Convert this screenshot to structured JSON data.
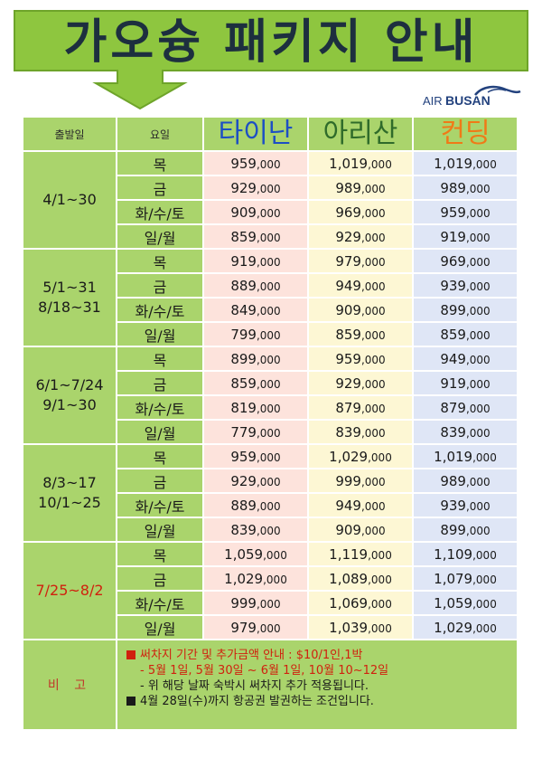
{
  "title": "가오슝 패키지 안내",
  "logo": {
    "air": "AIR",
    "busan": "BUSAN"
  },
  "colors": {
    "banner_green": "#8ec63f",
    "header_green": "#aad46c",
    "tainan": "#1d4fc4",
    "alishan": "#2f6b2a",
    "kending": "#f07a17",
    "red_note": "#d0210e"
  },
  "header": {
    "departure": "출발일",
    "weekday": "요일",
    "tainan": "타이난",
    "alishan": "아리산",
    "kending": "컨딩"
  },
  "periods": [
    {
      "lines": [
        "4/1~30"
      ],
      "red": false,
      "rows": [
        {
          "day": "목",
          "tainan": [
            "959",
            ",000"
          ],
          "alishan": [
            "1,019",
            ",000"
          ],
          "kending": [
            "1,019",
            ",000"
          ]
        },
        {
          "day": "금",
          "tainan": [
            "929",
            ",000"
          ],
          "alishan": [
            "989",
            ",000"
          ],
          "kending": [
            "989",
            ",000"
          ]
        },
        {
          "day": "화/수/토",
          "tainan": [
            "909",
            ",000"
          ],
          "alishan": [
            "969",
            ",000"
          ],
          "kending": [
            "959",
            ",000"
          ]
        },
        {
          "day": "일/월",
          "tainan": [
            "859",
            ",000"
          ],
          "alishan": [
            "929",
            ",000"
          ],
          "kending": [
            "919",
            ",000"
          ]
        }
      ]
    },
    {
      "lines": [
        "5/1~31",
        "8/18~31"
      ],
      "red": false,
      "rows": [
        {
          "day": "목",
          "tainan": [
            "919",
            ",000"
          ],
          "alishan": [
            "979",
            ",000"
          ],
          "kending": [
            "969",
            ",000"
          ]
        },
        {
          "day": "금",
          "tainan": [
            "889",
            ",000"
          ],
          "alishan": [
            "949",
            ",000"
          ],
          "kending": [
            "939",
            ",000"
          ]
        },
        {
          "day": "화/수/토",
          "tainan": [
            "849",
            ",000"
          ],
          "alishan": [
            "909",
            ",000"
          ],
          "kending": [
            "899",
            ",000"
          ]
        },
        {
          "day": "일/월",
          "tainan": [
            "799",
            ",000"
          ],
          "alishan": [
            "859",
            ",000"
          ],
          "kending": [
            "859",
            ",000"
          ]
        }
      ]
    },
    {
      "lines": [
        "6/1~7/24",
        "9/1~30"
      ],
      "red": false,
      "rows": [
        {
          "day": "목",
          "tainan": [
            "899",
            ",000"
          ],
          "alishan": [
            "959",
            ",000"
          ],
          "kending": [
            "949",
            ",000"
          ]
        },
        {
          "day": "금",
          "tainan": [
            "859",
            ",000"
          ],
          "alishan": [
            "929",
            ",000"
          ],
          "kending": [
            "919",
            ",000"
          ]
        },
        {
          "day": "화/수/토",
          "tainan": [
            "819",
            ",000"
          ],
          "alishan": [
            "879",
            ",000"
          ],
          "kending": [
            "879",
            ",000"
          ]
        },
        {
          "day": "일/월",
          "tainan": [
            "779",
            ",000"
          ],
          "alishan": [
            "839",
            ",000"
          ],
          "kending": [
            "839",
            ",000"
          ]
        }
      ]
    },
    {
      "lines": [
        "8/3~17",
        "10/1~25"
      ],
      "red": false,
      "rows": [
        {
          "day": "목",
          "tainan": [
            "959",
            ",000"
          ],
          "alishan": [
            "1,029",
            ",000"
          ],
          "kending": [
            "1,019",
            ",000"
          ]
        },
        {
          "day": "금",
          "tainan": [
            "929",
            ",000"
          ],
          "alishan": [
            "999",
            ",000"
          ],
          "kending": [
            "989",
            ",000"
          ]
        },
        {
          "day": "화/수/토",
          "tainan": [
            "889",
            ",000"
          ],
          "alishan": [
            "949",
            ",000"
          ],
          "kending": [
            "939",
            ",000"
          ]
        },
        {
          "day": "일/월",
          "tainan": [
            "839",
            ",000"
          ],
          "alishan": [
            "909",
            ",000"
          ],
          "kending": [
            "899",
            ",000"
          ]
        }
      ]
    },
    {
      "lines": [
        "7/25~8/2"
      ],
      "red": true,
      "rows": [
        {
          "day": "목",
          "tainan": [
            "1,059",
            ",000"
          ],
          "alishan": [
            "1,119",
            ",000"
          ],
          "kending": [
            "1,109",
            ",000"
          ]
        },
        {
          "day": "금",
          "tainan": [
            "1,029",
            ",000"
          ],
          "alishan": [
            "1,089",
            ",000"
          ],
          "kending": [
            "1,079",
            ",000"
          ]
        },
        {
          "day": "화/수/토",
          "tainan": [
            "999",
            ",000"
          ],
          "alishan": [
            "1,069",
            ",000"
          ],
          "kending": [
            "1,059",
            ",000"
          ]
        },
        {
          "day": "일/월",
          "tainan": [
            "979",
            ",000"
          ],
          "alishan": [
            "1,039",
            ",000"
          ],
          "kending": [
            "1,029",
            ",000"
          ]
        }
      ]
    }
  ],
  "notes": {
    "label": "비 고",
    "surcharge_title": "써차지 기간 및 추가금액 안내 : $10/1인,1박",
    "surcharge_dates": "- 5월 1일, 5월 30일 ~ 6월 1일, 10월 10~12일",
    "surcharge_apply": "- 위 해당 날짜 숙박시 써차지 추가 적용됩니다.",
    "ticketing": "4월 28일(수)까지 항공권 발권하는 조건입니다."
  }
}
